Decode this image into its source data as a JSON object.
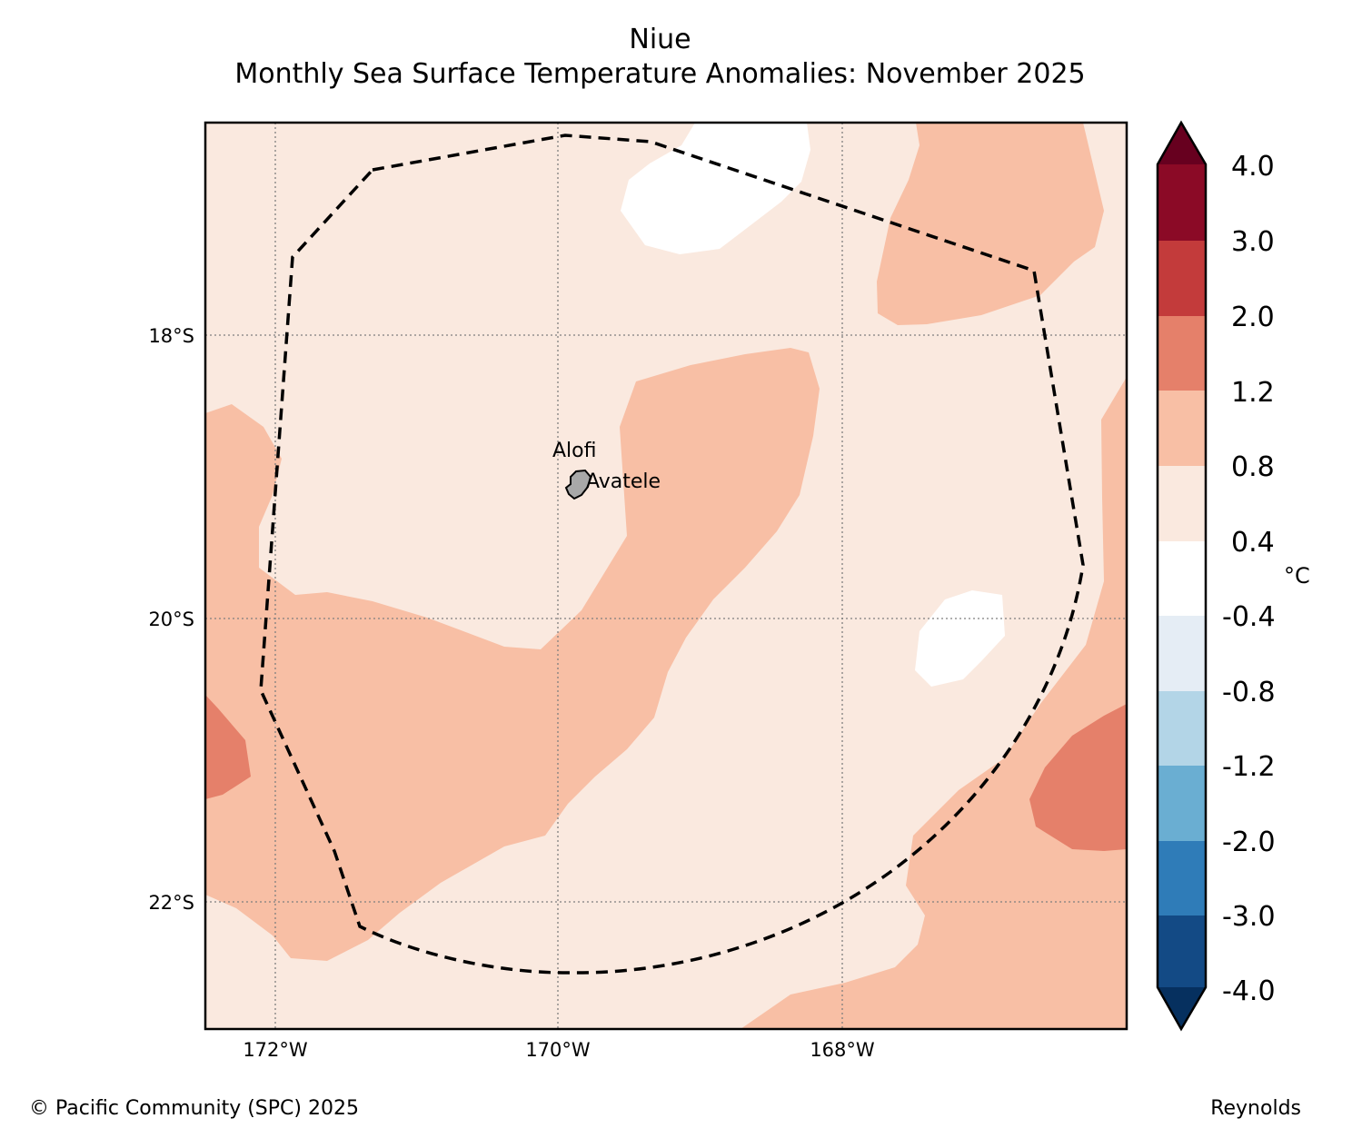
{
  "title": {
    "line1": "Niue",
    "line2": "Monthly Sea Surface Temperature Anomalies: November 2025"
  },
  "map": {
    "lat_labels": [
      "18°S",
      "20°S",
      "22°S"
    ],
    "lon_labels": [
      "172°W",
      "170°W",
      "168°W"
    ],
    "places": [
      {
        "name": "Alofi"
      },
      {
        "name": "Avatele"
      }
    ],
    "island": "Niue",
    "boundary": "EEZ boundary (dashed)"
  },
  "colorbar": {
    "unit": "°C",
    "tick_labels": [
      "4.0",
      "3.0",
      "2.0",
      "1.2",
      "0.8",
      "0.4",
      "-0.4",
      "-0.8",
      "-1.2",
      "-2.0",
      "-3.0",
      "-4.0"
    ],
    "colors": {
      "gt_4.0": "#67001f",
      "3.0_4.0": "#8b0a26",
      "2.0_3.0": "#c33b3b",
      "1.2_2.0": "#e5806a",
      "0.8_1.2": "#f8bfa5",
      "0.4_0.8": "#fae9df",
      "-0.4_0.4": "#ffffff",
      "-0.8_-0.4": "#e5edf5",
      "-1.2_-0.8": "#b3d5e7",
      "-2.0_-1.2": "#6aaed2",
      "-3.0_-2.0": "#2f7cb8",
      "-4.0_-3.0": "#134a85",
      "lt_-4.0": "#06305f"
    }
  },
  "footer": {
    "copyright": "© Pacific Community (SPC) 2025",
    "source": "Reynolds"
  }
}
